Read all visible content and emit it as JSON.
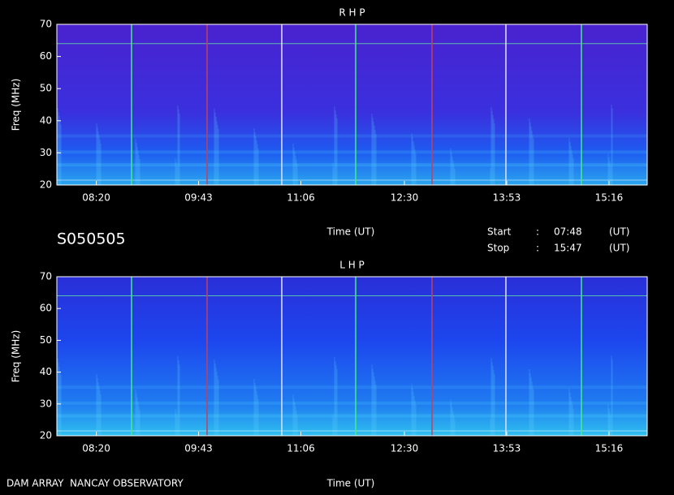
{
  "chart_data": [
    {
      "type": "spectrogram",
      "title": "R H P",
      "y_label": "Freq (MHz)",
      "x_label": "Time (UT)",
      "xlim": [
        468,
        947
      ],
      "xticks": [
        {
          "value": 500,
          "label": "08:20"
        },
        {
          "value": 583,
          "label": "09:43"
        },
        {
          "value": 666,
          "label": "11:06"
        },
        {
          "value": 750,
          "label": "12:30"
        },
        {
          "value": 833,
          "label": "13:53"
        },
        {
          "value": 916,
          "label": "15:16"
        }
      ],
      "ylim": [
        20,
        70
      ],
      "yticks": [
        20,
        30,
        40,
        50,
        60,
        70
      ]
    },
    {
      "type": "spectrogram",
      "title": "L H P",
      "y_label": "Freq (MHz)",
      "x_label": "Time (UT)",
      "xlim": [
        468,
        947
      ],
      "xticks": [
        {
          "value": 500,
          "label": "08:20"
        },
        {
          "value": 583,
          "label": "09:43"
        },
        {
          "value": 666,
          "label": "11:06"
        },
        {
          "value": 750,
          "label": "12:30"
        },
        {
          "value": 833,
          "label": "13:53"
        },
        {
          "value": 916,
          "label": "15:16"
        }
      ],
      "ylim": [
        20,
        70
      ],
      "yticks": [
        20,
        30,
        40,
        50,
        60,
        70
      ]
    }
  ],
  "header": {
    "id": "S050505",
    "start_label": "Start",
    "stop_label": "Stop",
    "sep": ":",
    "start": "07:48",
    "stop": "15:47",
    "unit": "(UT)"
  },
  "footer": "DAM ARRAY  NANCAY OBSERVATORY"
}
